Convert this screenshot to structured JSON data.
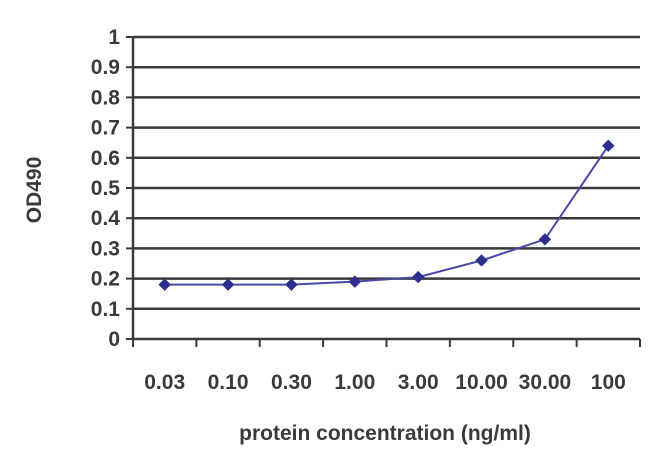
{
  "chart_data": {
    "type": "line",
    "title": "",
    "xlabel": "protein concentration  (ng/ml)",
    "ylabel": "OD490",
    "categories": [
      "0.03",
      "0.10",
      "0.30",
      "1.00",
      "3.00",
      "10.00",
      "30.00",
      "100"
    ],
    "series": [
      {
        "values": [
          0.18,
          0.18,
          0.18,
          0.19,
          0.205,
          0.26,
          0.33,
          0.64
        ]
      }
    ],
    "ylim": [
      0,
      1
    ],
    "yticks": [
      "0",
      "0.1",
      "0.2",
      "0.3",
      "0.4",
      "0.5",
      "0.6",
      "0.7",
      "0.8",
      "0.9",
      "1"
    ],
    "grid": true,
    "legend": "none",
    "colors": {
      "series": "#4a4aa6",
      "marker": "#2e2e8c",
      "grid": "#3a3a3a",
      "axis": "#3a3a3a"
    }
  }
}
